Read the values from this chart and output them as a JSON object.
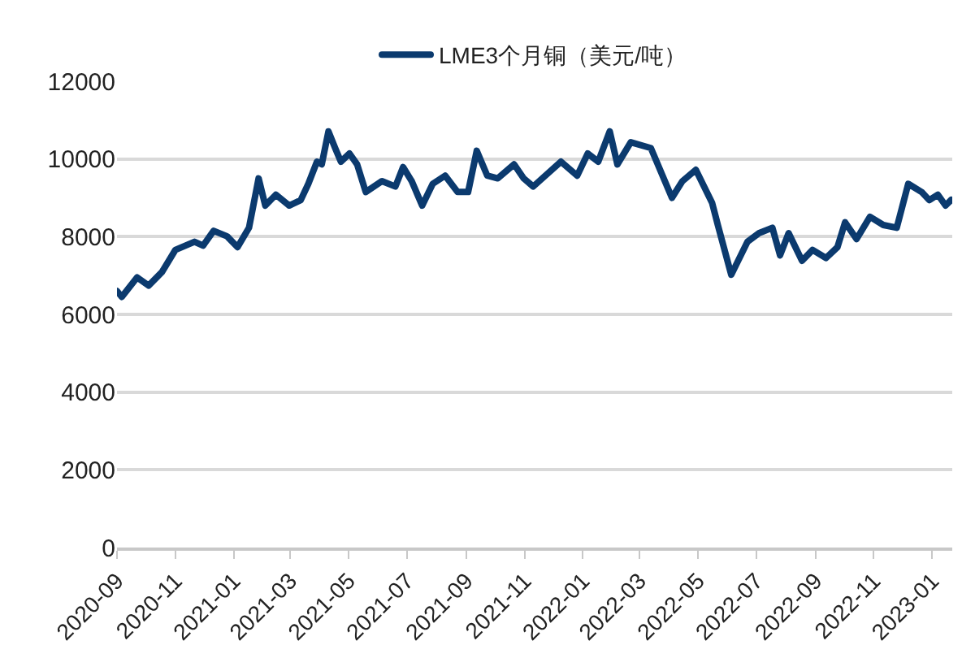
{
  "chart_data": {
    "type": "line",
    "grid": "y",
    "legend": "top",
    "line_style": "solid",
    "marker": "none",
    "x": [
      "2020-09-01",
      "2020-09-06",
      "2020-09-22",
      "2020-10-04",
      "2020-10-18",
      "2020-11-01",
      "2020-11-21",
      "2020-11-30",
      "2020-12-11",
      "2020-12-25",
      "2021-01-05",
      "2021-01-17",
      "2021-01-27",
      "2021-02-03",
      "2021-02-14",
      "2021-02-28",
      "2021-03-12",
      "2021-03-20",
      "2021-03-29",
      "2021-04-03",
      "2021-04-10",
      "2021-04-17",
      "2021-04-23",
      "2021-05-02",
      "2021-05-10",
      "2021-05-19",
      "2021-06-05",
      "2021-06-19",
      "2021-06-27",
      "2021-07-06",
      "2021-07-17",
      "2021-07-28",
      "2021-08-10",
      "2021-08-23",
      "2021-09-03",
      "2021-09-12",
      "2021-09-23",
      "2021-10-04",
      "2021-10-21",
      "2021-10-31",
      "2021-11-10",
      "2021-12-09",
      "2021-12-26",
      "2022-01-06",
      "2022-01-17",
      "2022-01-29",
      "2022-02-06",
      "2022-02-20",
      "2022-03-13",
      "2022-04-04",
      "2022-04-15",
      "2022-04-29",
      "2022-05-16",
      "2022-05-22",
      "2022-06-05",
      "2022-06-22",
      "2022-07-04",
      "2022-07-18",
      "2022-07-26",
      "2022-08-04",
      "2022-08-18",
      "2022-08-29",
      "2022-09-12",
      "2022-09-24",
      "2022-10-02",
      "2022-10-14",
      "2022-10-28",
      "2022-11-11",
      "2022-11-25",
      "2022-12-07",
      "2022-12-21",
      "2022-12-29",
      "2023-01-07",
      "2023-01-15",
      "2023-01-21"
    ],
    "series": [
      {
        "name": "LME3个月铜（美元/吨）",
        "color": "#0b3a6e",
        "values": [
          6600,
          6450,
          6950,
          6740,
          7090,
          7660,
          7870,
          7770,
          8150,
          8010,
          7730,
          8230,
          9500,
          8800,
          9080,
          8800,
          8940,
          9360,
          9930,
          9860,
          10710,
          10280,
          9930,
          10140,
          9860,
          9150,
          9430,
          9290,
          9790,
          9430,
          8800,
          9360,
          9570,
          9150,
          9150,
          10210,
          9570,
          9500,
          9860,
          9500,
          9290,
          9930,
          9570,
          10140,
          9930,
          10710,
          9860,
          10430,
          10280,
          9000,
          9430,
          9720,
          8870,
          8300,
          7020,
          7870,
          8090,
          8230,
          7520,
          8090,
          7380,
          7660,
          7450,
          7730,
          8370,
          7940,
          8510,
          8300,
          8230,
          9360,
          9150,
          8940,
          9080,
          8800,
          8950
        ]
      }
    ],
    "xlim": [
      "2020-09-01",
      "2023-01-22"
    ],
    "xticks": [
      {
        "value": "2020-09",
        "label": "2020-09"
      },
      {
        "value": "2020-11",
        "label": "2020-11"
      },
      {
        "value": "2021-01",
        "label": "2021-01"
      },
      {
        "value": "2021-03",
        "label": "2021-03"
      },
      {
        "value": "2021-05",
        "label": "2021-05"
      },
      {
        "value": "2021-07",
        "label": "2021-07"
      },
      {
        "value": "2021-09",
        "label": "2021-09"
      },
      {
        "value": "2021-11",
        "label": "2021-11"
      },
      {
        "value": "2022-01",
        "label": "2022-01"
      },
      {
        "value": "2022-03",
        "label": "2022-03"
      },
      {
        "value": "2022-05",
        "label": "2022-05"
      },
      {
        "value": "2022-07",
        "label": "2022-07"
      },
      {
        "value": "2022-09",
        "label": "2022-09"
      },
      {
        "value": "2022-11",
        "label": "2022-11"
      },
      {
        "value": "2023-01",
        "label": "2023-01"
      }
    ],
    "ylim": [
      0,
      12000
    ],
    "yticks": [
      0,
      2000,
      4000,
      6000,
      8000,
      10000,
      12000
    ]
  }
}
